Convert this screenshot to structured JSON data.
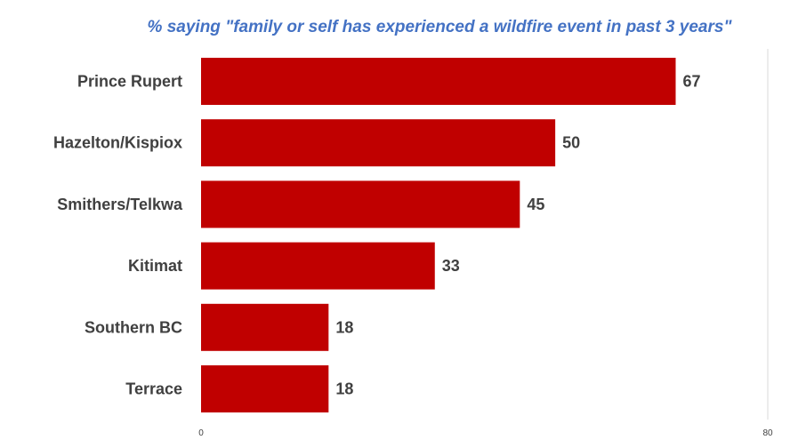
{
  "chart_data": {
    "type": "bar",
    "orientation": "horizontal",
    "title": "% saying \"family or self has experienced a wildfire event in past 3 years\"",
    "categories": [
      "Prince Rupert",
      "Hazelton/Kispiox",
      "Smithers/Telkwa",
      "Kitimat",
      "Southern BC",
      "Terrace"
    ],
    "values": [
      67,
      50,
      45,
      33,
      18,
      18
    ],
    "xlim": [
      0,
      80
    ],
    "x_ticks": [
      "0",
      "80"
    ],
    "bar_color": "#c00000",
    "title_color": "#4472c4",
    "grid": false,
    "legend": "none"
  }
}
